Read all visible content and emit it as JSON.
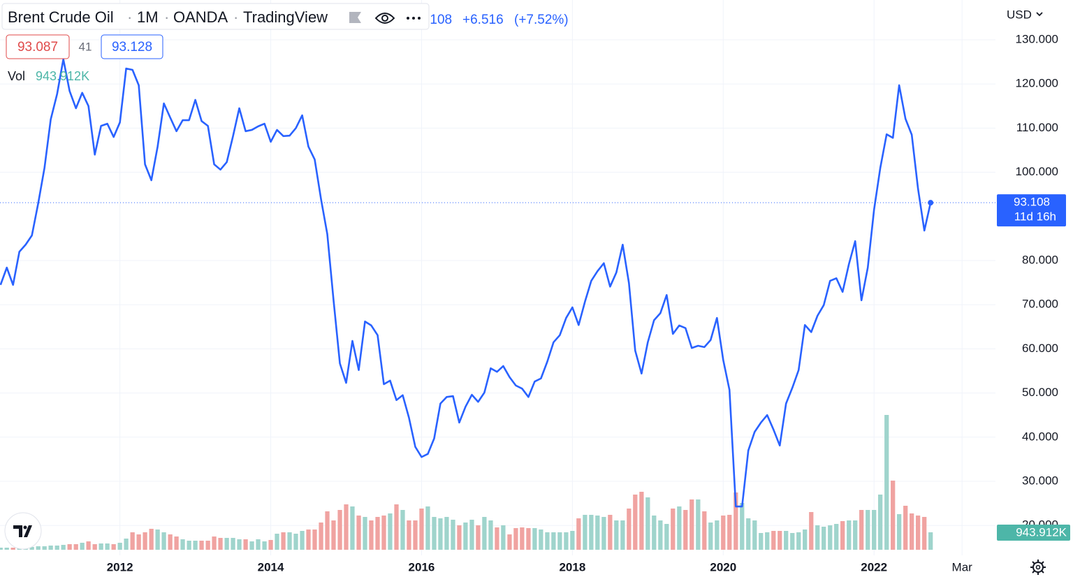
{
  "chart_data": {
    "type": "line",
    "title": "Brent Crude Oil",
    "interval": "1M",
    "source": "OANDA",
    "platform": "TradingView",
    "bid": 93.087,
    "spread": 41,
    "ask": 93.128,
    "change": {
      "value": 6.516,
      "label": "+6.516"
    },
    "change_percent": {
      "value": 7.52,
      "label": "(+7.52%)"
    },
    "currency": "USD",
    "countdown": "11d 16h",
    "grid": true,
    "xlim": [
      2010.41,
      2023.61
    ],
    "ylim": [
      13.23,
      139.02
    ],
    "xticks": [
      2012,
      2014,
      2016,
      2018,
      2020,
      2022,
      {
        "value": 2023.167,
        "label": "Mar"
      }
    ],
    "yticks": [
      {
        "value": 20,
        "label": "20.000"
      },
      {
        "value": 30,
        "label": "30.000"
      },
      {
        "value": 40,
        "label": "40.000"
      },
      {
        "value": 50,
        "label": "50.000"
      },
      {
        "value": 60,
        "label": "60.000"
      },
      {
        "value": 70,
        "label": "70.000"
      },
      {
        "value": 80,
        "label": "80.000"
      },
      {
        "value": 100,
        "label": "100.000"
      },
      {
        "value": 110,
        "label": "110.000"
      },
      {
        "value": 120,
        "label": "120.000"
      },
      {
        "value": 130,
        "label": "130.000"
      }
    ],
    "x": [
      2010.417,
      2010.5,
      2010.583,
      2010.667,
      2010.75,
      2010.833,
      2010.917,
      2011,
      2011.083,
      2011.167,
      2011.25,
      2011.333,
      2011.417,
      2011.5,
      2011.583,
      2011.667,
      2011.75,
      2011.833,
      2011.917,
      2012,
      2012.083,
      2012.167,
      2012.25,
      2012.333,
      2012.417,
      2012.5,
      2012.583,
      2012.667,
      2012.75,
      2012.833,
      2012.917,
      2013,
      2013.083,
      2013.167,
      2013.25,
      2013.333,
      2013.417,
      2013.5,
      2013.583,
      2013.667,
      2013.75,
      2013.833,
      2013.917,
      2014,
      2014.083,
      2014.167,
      2014.25,
      2014.333,
      2014.417,
      2014.5,
      2014.583,
      2014.667,
      2014.75,
      2014.833,
      2014.917,
      2015,
      2015.083,
      2015.167,
      2015.25,
      2015.333,
      2015.417,
      2015.5,
      2015.583,
      2015.667,
      2015.75,
      2015.833,
      2015.917,
      2016,
      2016.083,
      2016.167,
      2016.25,
      2016.333,
      2016.417,
      2016.5,
      2016.583,
      2016.667,
      2016.75,
      2016.833,
      2016.917,
      2017,
      2017.083,
      2017.167,
      2017.25,
      2017.333,
      2017.417,
      2017.5,
      2017.583,
      2017.667,
      2017.75,
      2017.833,
      2017.917,
      2018,
      2018.083,
      2018.167,
      2018.25,
      2018.333,
      2018.417,
      2018.5,
      2018.583,
      2018.667,
      2018.75,
      2018.833,
      2018.917,
      2019,
      2019.083,
      2019.167,
      2019.25,
      2019.333,
      2019.417,
      2019.5,
      2019.583,
      2019.667,
      2019.75,
      2019.833,
      2019.917,
      2020,
      2020.083,
      2020.167,
      2020.25,
      2020.333,
      2020.417,
      2020.5,
      2020.583,
      2020.667,
      2020.75,
      2020.833,
      2020.917,
      2021,
      2021.083,
      2021.167,
      2021.25,
      2021.333,
      2021.417,
      2021.5,
      2021.583,
      2021.667,
      2021.75,
      2021.833,
      2021.917,
      2022,
      2022.083,
      2022.167,
      2022.25,
      2022.333,
      2022.417,
      2022.5,
      2022.583,
      2022.667,
      2022.75
    ],
    "series": [
      {
        "color": "#2962ff",
        "values": [
          74.5,
          78.4,
          74.5,
          82.0,
          83.6,
          85.7,
          93.0,
          101,
          112,
          117.7,
          125.6,
          118.4,
          114.5,
          118,
          115,
          104,
          110.5,
          111,
          108,
          111.3,
          123.5,
          123.2,
          119.7,
          101.8,
          98.2,
          105.8,
          115.6,
          112.4,
          109.3,
          111.8,
          111.8,
          116.4,
          111.6,
          110.5,
          101.8,
          100.6,
          102.3,
          108.2,
          114.5,
          109.3,
          109.6,
          110.4,
          111,
          106.9,
          109.6,
          108.2,
          108.3,
          110,
          112.9,
          105.8,
          102.9,
          93.9,
          86,
          71,
          56.7,
          52.3,
          61.8,
          55.2,
          66.2,
          65.3,
          63.1,
          52,
          52.8,
          48.4,
          49.5,
          44.4,
          37.8,
          35.5,
          36.2,
          39.7,
          47.6,
          49.1,
          49.3,
          43.3,
          46.9,
          49.6,
          48,
          50.1,
          55.6,
          54.8,
          56.1,
          53.6,
          51.7,
          51,
          49.1,
          52.6,
          53.3,
          57.1,
          61.5,
          63.1,
          67,
          69.4,
          65.4,
          70.7,
          75.4,
          77.6,
          79.4,
          74.1,
          77.3,
          83.6,
          74.9,
          59.6,
          54.4,
          61.5,
          66.5,
          68.1,
          72.2,
          63.4,
          65.3,
          64.7,
          60.2,
          60.7,
          60.4,
          62,
          67,
          57.5,
          50.7,
          24.3,
          24.3,
          37,
          41.2,
          43.3,
          45,
          41.7,
          38.1,
          47.6,
          51.2,
          55.2,
          65.4,
          63.8,
          67.5,
          69.9,
          75.4,
          76,
          72.9,
          79.2,
          84.4,
          71,
          78.4,
          91.5,
          101,
          108.6,
          107.8,
          119.7,
          112.1,
          108.5,
          96.3,
          86.8,
          93.108
        ]
      }
    ],
    "volume": {
      "name": "Vol",
      "up_color": "#9fd4cc",
      "down_color": "#f0a3a1",
      "tag_color": "#4db6a8",
      "values": [
        113,
        113,
        113,
        113,
        151,
        151,
        189,
        189,
        227,
        227,
        264,
        302,
        302,
        378,
        453,
        302,
        340,
        340,
        302,
        378,
        604,
        944,
        831,
        944,
        1133,
        1095,
        944,
        831,
        717,
        566,
        491,
        491,
        491,
        491,
        717,
        642,
        642,
        642,
        566,
        566,
        453,
        566,
        453,
        529,
        868,
        944,
        944,
        868,
        1020,
        1095,
        1095,
        1473,
        2077,
        1586,
        2152,
        2454,
        2341,
        1850,
        1775,
        1586,
        1775,
        1850,
        1964,
        2454,
        2152,
        1586,
        1586,
        2228,
        2341,
        1775,
        1699,
        1775,
        1624,
        1322,
        1473,
        1624,
        1322,
        1775,
        1586,
        1208,
        1322,
        831,
        1171,
        1208,
        1171,
        1171,
        1095,
        944,
        944,
        944,
        944,
        1020,
        1699,
        1888,
        1888,
        1850,
        1775,
        1888,
        1586,
        1586,
        2228,
        2983,
        3134,
        2832,
        1850,
        1586,
        1397,
        2228,
        2341,
        2152,
        2719,
        2719,
        2077,
        1473,
        1586,
        1850,
        1888,
        3096,
        2530,
        1699,
        1586,
        906,
        944,
        1020,
        1020,
        1020,
        906,
        944,
        1095,
        2039,
        1322,
        1246,
        1322,
        1397,
        1548,
        1586,
        1586,
        2152,
        2152,
        2152,
        2983,
        7288,
        3738,
        1926,
        2379,
        1964,
        1850,
        1775,
        943.912
      ],
      "value_labels": [
        null,
        null,
        null,
        null,
        null,
        null,
        null,
        null,
        null,
        null,
        null,
        null,
        null,
        null,
        null,
        null,
        null,
        null,
        null,
        null,
        null,
        null,
        null,
        null,
        null,
        null,
        null,
        null,
        null,
        null,
        null,
        null,
        null,
        null,
        null,
        null,
        null,
        null,
        null,
        null,
        null,
        null,
        null,
        null,
        null,
        null,
        null,
        null,
        null,
        null,
        null,
        null,
        null,
        null,
        null,
        null,
        null,
        null,
        null,
        null,
        null,
        null,
        null,
        null,
        null,
        null,
        null,
        null,
        null,
        null,
        null,
        null,
        null,
        null,
        null,
        null,
        null,
        null,
        null,
        null,
        null,
        null,
        null,
        null,
        null,
        null,
        null,
        null,
        null,
        null,
        null,
        null,
        null,
        null,
        null,
        null,
        null,
        null,
        null,
        null,
        null,
        null,
        null,
        null,
        null,
        null,
        null,
        null,
        null,
        null,
        null,
        null,
        null,
        null,
        null,
        null,
        null,
        null,
        null,
        null,
        null,
        null,
        null,
        null,
        null,
        null,
        null,
        null,
        null,
        null,
        null,
        null,
        null,
        null,
        null,
        null,
        null,
        null,
        null,
        null,
        null,
        null,
        null,
        null,
        null,
        null,
        null,
        null,
        "943.912K"
      ]
    }
  }
}
